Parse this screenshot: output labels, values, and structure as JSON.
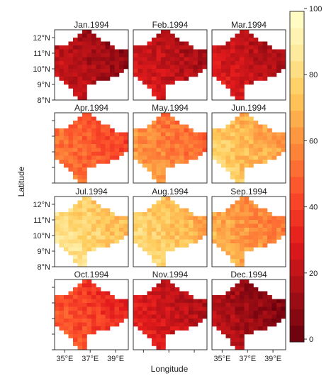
{
  "chart_data": {
    "type": "heatmap",
    "title": "",
    "xlabel": "Longitude",
    "ylabel": "Latitude",
    "x_ticks": [
      "35°E",
      "37°E",
      "39°E"
    ],
    "y_ticks": [
      "8°N",
      "9°N",
      "10°N",
      "11°N",
      "12°N"
    ],
    "colorbar": {
      "range": [
        0,
        100
      ],
      "ticks": [
        "0",
        "20",
        "40",
        "60",
        "80",
        "100"
      ],
      "color_low": "#67000d",
      "color_mid": "#e31a1c",
      "color_high": "#ffffcc"
    },
    "panels": [
      {
        "label": "Jan.1994",
        "mean": 16
      },
      {
        "label": "Feb.1994",
        "mean": 21
      },
      {
        "label": "Mar.1994",
        "mean": 22
      },
      {
        "label": "Apr.1994",
        "mean": 48
      },
      {
        "label": "May.1994",
        "mean": 56
      },
      {
        "label": "Jun.1994",
        "mean": 70
      },
      {
        "label": "Jul.1994",
        "mean": 78
      },
      {
        "label": "Aug.1994",
        "mean": 74
      },
      {
        "label": "Sep.1994",
        "mean": 62
      },
      {
        "label": "Oct.1994",
        "mean": 40
      },
      {
        "label": "Nov.1994",
        "mean": 24
      },
      {
        "label": "Dec.1994",
        "mean": 13
      }
    ]
  }
}
